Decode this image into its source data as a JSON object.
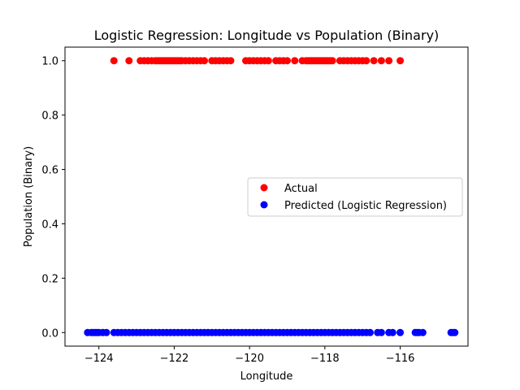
{
  "chart_data": {
    "type": "scatter",
    "title": "Logistic Regression: Longitude vs Population (Binary)",
    "xlabel": "Longitude",
    "ylabel": "Population (Binary)",
    "xlim": [
      -124.9,
      -114.2
    ],
    "ylim": [
      -0.05,
      1.05
    ],
    "xticks": [
      -124,
      -122,
      -120,
      -118,
      -116
    ],
    "xtick_labels": [
      "−124",
      "−122",
      "−120",
      "−118",
      "−116"
    ],
    "yticks": [
      0.0,
      0.2,
      0.4,
      0.6,
      0.8,
      1.0
    ],
    "ytick_labels": [
      "0.0",
      "0.2",
      "0.4",
      "0.6",
      "0.8",
      "1.0"
    ],
    "grid": false,
    "legend_position": "center-right",
    "series": [
      {
        "name": "Actual",
        "color": "#ff0000",
        "y": 1,
        "x": [
          -123.6,
          -123.2,
          -122.9,
          -122.8,
          -122.7,
          -122.6,
          -122.5,
          -122.45,
          -122.4,
          -122.35,
          -122.3,
          -122.25,
          -122.2,
          -122.15,
          -122.1,
          -122.05,
          -122.0,
          -121.95,
          -121.9,
          -121.85,
          -121.8,
          -121.7,
          -121.6,
          -121.5,
          -121.4,
          -121.3,
          -121.2,
          -121.0,
          -120.9,
          -120.8,
          -120.7,
          -120.6,
          -120.5,
          -120.1,
          -120.0,
          -119.9,
          -119.8,
          -119.7,
          -119.6,
          -119.5,
          -119.3,
          -119.2,
          -119.1,
          -119.0,
          -118.8,
          -118.6,
          -118.5,
          -118.45,
          -118.4,
          -118.35,
          -118.3,
          -118.25,
          -118.2,
          -118.15,
          -118.1,
          -118.05,
          -118.0,
          -117.95,
          -117.9,
          -117.85,
          -117.8,
          -117.6,
          -117.5,
          -117.4,
          -117.3,
          -117.2,
          -117.1,
          -117.0,
          -116.9,
          -116.7,
          -116.5,
          -116.3,
          -116.0
        ]
      },
      {
        "name": "Predicted (Logistic Regression)",
        "color": "#0000ff",
        "y": 0,
        "x": [
          -124.3,
          -124.2,
          -124.15,
          -124.1,
          -124.05,
          -124.0,
          -123.9,
          -123.8,
          -123.6,
          -123.5,
          -123.4,
          -123.3,
          -123.2,
          -123.1,
          -123.0,
          -122.9,
          -122.8,
          -122.7,
          -122.6,
          -122.5,
          -122.4,
          -122.3,
          -122.2,
          -122.1,
          -122.0,
          -121.9,
          -121.8,
          -121.7,
          -121.6,
          -121.5,
          -121.4,
          -121.3,
          -121.2,
          -121.1,
          -121.0,
          -120.9,
          -120.8,
          -120.7,
          -120.6,
          -120.5,
          -120.4,
          -120.3,
          -120.2,
          -120.1,
          -120.0,
          -119.9,
          -119.8,
          -119.7,
          -119.6,
          -119.5,
          -119.4,
          -119.3,
          -119.2,
          -119.1,
          -119.0,
          -118.9,
          -118.8,
          -118.7,
          -118.6,
          -118.5,
          -118.4,
          -118.3,
          -118.2,
          -118.1,
          -118.0,
          -117.9,
          -117.8,
          -117.7,
          -117.6,
          -117.5,
          -117.4,
          -117.3,
          -117.2,
          -117.1,
          -117.0,
          -116.9,
          -116.8,
          -116.6,
          -116.5,
          -116.3,
          -116.2,
          -116.0,
          -115.6,
          -115.55,
          -115.5,
          -115.4,
          -114.65,
          -114.6,
          -114.55
        ]
      }
    ]
  }
}
